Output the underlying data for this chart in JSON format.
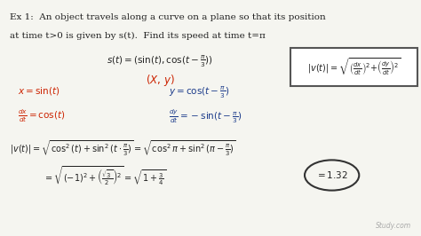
{
  "background_color": "#f5f5f0",
  "title_line1": "Ex 1:  An object travels along a curve on a plane so that its position",
  "title_line2": "at time t>0 is given by s(t).  Find its speed at time t=π",
  "fig_width": 4.74,
  "fig_height": 2.66,
  "dpi": 100,
  "watermark": "Study.com",
  "text_color": "#222222",
  "red_color": "#cc2200",
  "blue_color": "#1a3a8a"
}
